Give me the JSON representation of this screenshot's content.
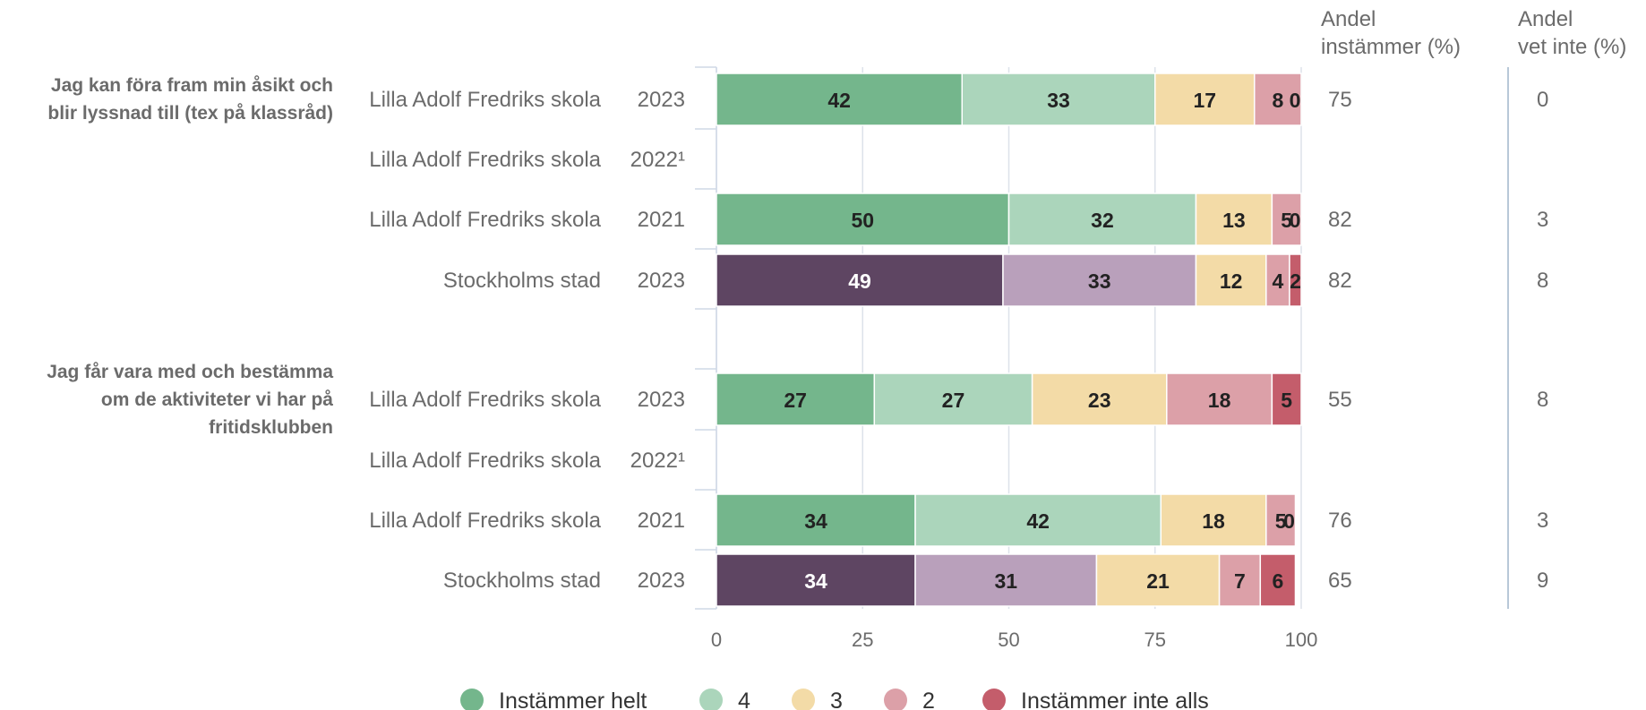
{
  "colors": {
    "school": [
      "#74b68c",
      "#abd5bb",
      "#f3dba7",
      "#dca0a8",
      "#c45d6b"
    ],
    "city": [
      "#5e4562",
      "#b9a0bb",
      "#f3dba7",
      "#dca0a8",
      "#c45d6b"
    ],
    "text": "#6b6b6b",
    "grid": "#dde2ea",
    "divider": "#b8c8d8"
  },
  "headers": {
    "agree_line1": "Andel",
    "agree_line2": "instämmer (%)",
    "dontknow_line1": "Andel",
    "dontknow_line2": "vet inte (%)"
  },
  "chart_data": {
    "type": "bar",
    "orientation": "horizontal",
    "stacked": true,
    "xlim": [
      0,
      100
    ],
    "xticks": [
      0,
      25,
      50,
      75,
      100
    ],
    "legend": [
      "Instämmer helt",
      "4",
      "3",
      "2",
      "Instämmer inte alls"
    ],
    "legend_position": "bottom",
    "groups": [
      {
        "question_lines": [
          "Jag kan föra fram min åsikt och",
          "blir lyssnad till (tex på klassråd)"
        ],
        "rows": [
          {
            "unit": "Lilla Adolf Fredriks skola",
            "year": "2023",
            "values": [
              42,
              33,
              17,
              8,
              0
            ],
            "agree": "75",
            "dont_know": "0"
          },
          {
            "unit": "Lilla Adolf Fredriks skola",
            "year": "2022¹",
            "values": null,
            "agree": "",
            "dont_know": ""
          },
          {
            "unit": "Lilla Adolf Fredriks skola",
            "year": "2021",
            "values": [
              50,
              32,
              13,
              5,
              0
            ],
            "agree": "82",
            "dont_know": "3"
          },
          {
            "unit": "Stockholms stad",
            "year": "2023",
            "values": [
              49,
              33,
              12,
              4,
              2
            ],
            "agree": "82",
            "dont_know": "8",
            "city": true
          }
        ]
      },
      {
        "question_lines": [
          "Jag får vara med och bestämma",
          "om de aktiviteter vi har på",
          "fritidsklubben"
        ],
        "rows": [
          {
            "unit": "Lilla Adolf Fredriks skola",
            "year": "2023",
            "values": [
              27,
              27,
              23,
              18,
              5
            ],
            "agree": "55",
            "dont_know": "8"
          },
          {
            "unit": "Lilla Adolf Fredriks skola",
            "year": "2022¹",
            "values": null,
            "agree": "",
            "dont_know": ""
          },
          {
            "unit": "Lilla Adolf Fredriks skola",
            "year": "2021",
            "values": [
              34,
              42,
              18,
              5,
              0
            ],
            "agree": "76",
            "dont_know": "3"
          },
          {
            "unit": "Stockholms stad",
            "year": "2023",
            "values": [
              34,
              31,
              21,
              7,
              6
            ],
            "agree": "65",
            "dont_know": "9",
            "city": true
          }
        ]
      }
    ]
  }
}
